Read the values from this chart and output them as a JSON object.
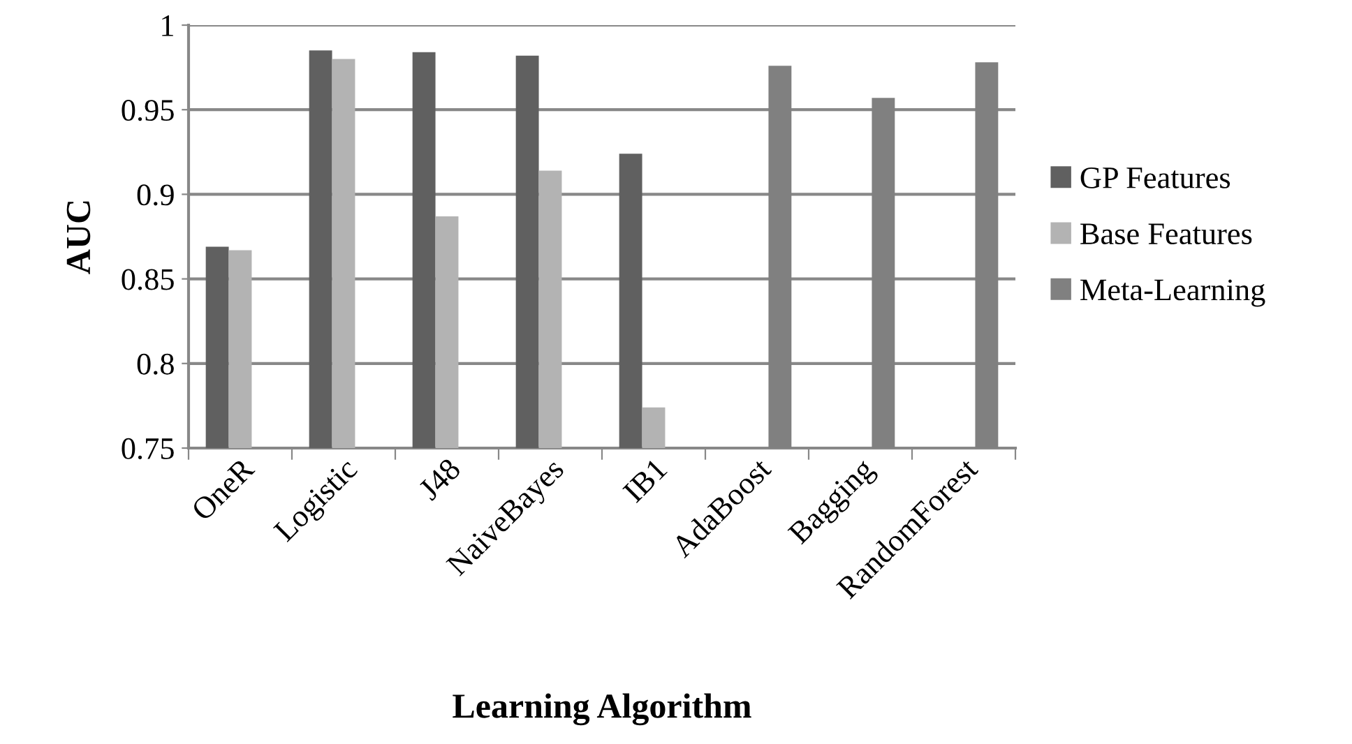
{
  "chart_data": {
    "type": "bar",
    "xlabel": "Learning Algorithm",
    "ylabel": "AUC",
    "categories": [
      "OneR",
      "Logistic",
      "J48",
      "NaiveBayes",
      "IB1",
      "AdaBoost",
      "Bagging",
      "RandomForest"
    ],
    "series": [
      {
        "name": "GP Features",
        "color": "#606060",
        "values": [
          0.869,
          0.985,
          0.984,
          0.982,
          0.924,
          null,
          null,
          null
        ]
      },
      {
        "name": "Base Features",
        "color": "#b3b3b3",
        "values": [
          0.867,
          0.98,
          0.887,
          0.914,
          0.774,
          null,
          null,
          null
        ]
      },
      {
        "name": "Meta-Learning",
        "color": "#808080",
        "values": [
          null,
          null,
          null,
          null,
          null,
          0.976,
          0.957,
          0.978
        ]
      }
    ],
    "ylim": [
      0.75,
      1
    ],
    "yticks": [
      0.75,
      0.8,
      0.85,
      0.9,
      0.95,
      1
    ],
    "grid": "y",
    "legend": "right"
  }
}
